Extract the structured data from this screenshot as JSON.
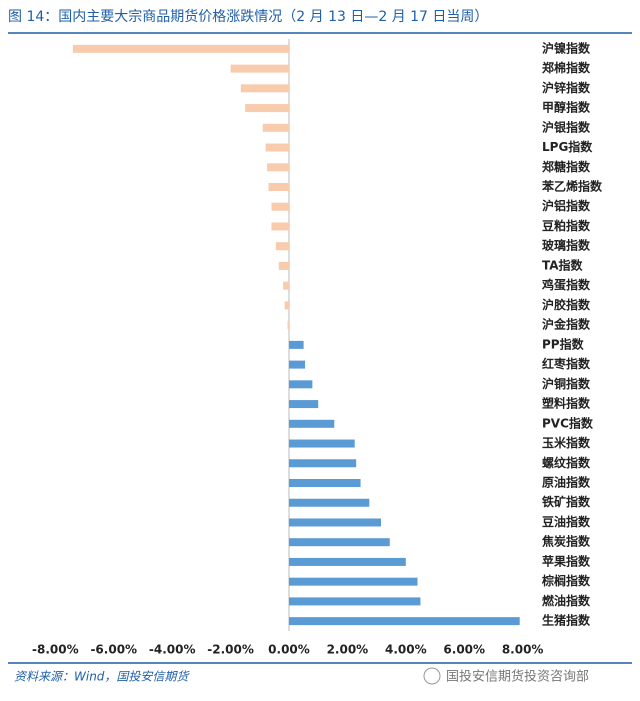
{
  "chart_data": {
    "type": "hbar",
    "title": "图 14：国内主要大宗商品期货价格涨跌情况（2 月 13 日—2 月 17 日当周）",
    "categories": [
      "沪镍指数",
      "郑棉指数",
      "沪锌指数",
      "甲醇指数",
      "沪银指数",
      "LPG指数",
      "郑糖指数",
      "苯乙烯指数",
      "沪铝指数",
      "豆粕指数",
      "玻璃指数",
      "TA指数",
      "鸡蛋指数",
      "沪胶指数",
      "沪金指数",
      "PP指数",
      "红枣指数",
      "沪铜指数",
      "塑料指数",
      "PVC指数",
      "玉米指数",
      "螺纹指数",
      "原油指数",
      "铁矿指数",
      "豆油指数",
      "焦炭指数",
      "苹果指数",
      "棕榈指数",
      "燃油指数",
      "生猪指数"
    ],
    "values": [
      -7.4,
      -2.0,
      -1.65,
      -1.5,
      -0.9,
      -0.8,
      -0.75,
      -0.7,
      -0.6,
      -0.6,
      -0.45,
      -0.35,
      -0.2,
      -0.15,
      -0.05,
      0.5,
      0.55,
      0.8,
      1.0,
      1.55,
      2.25,
      2.3,
      2.45,
      2.75,
      3.15,
      3.45,
      4.0,
      4.4,
      4.5,
      7.9
    ],
    "color_negative": "#f8cbad",
    "color_positive": "#5b9bd5",
    "xlim": [
      -8.8,
      8.8
    ],
    "xticks": [
      {
        "value": -8,
        "label": "-8.00%"
      },
      {
        "value": -6,
        "label": "-6.00%"
      },
      {
        "value": -4,
        "label": "-4.00%"
      },
      {
        "value": -2,
        "label": "-2.00%"
      },
      {
        "value": 0,
        "label": "0.00%"
      },
      {
        "value": 2,
        "label": "2.00%"
      },
      {
        "value": 4,
        "label": "4.00%"
      },
      {
        "value": 6,
        "label": "6.00%"
      },
      {
        "value": 8,
        "label": "8.00%"
      }
    ],
    "source": "资料来源：Wind，国投安信期货",
    "watermark": "国投安信期货投资咨询部"
  }
}
